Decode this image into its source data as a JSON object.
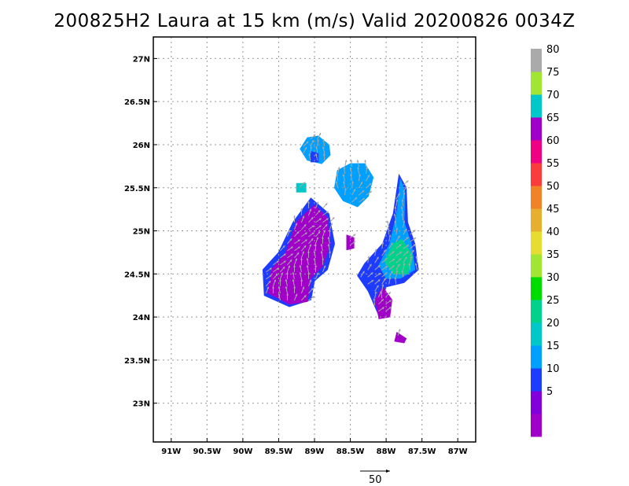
{
  "title": "200825H2 Laura at 15 km (m/s) Valid 20200826 0034Z",
  "map": {
    "lon_range": [
      -91.25,
      -86.75
    ],
    "lat_range": [
      22.55,
      27.25
    ],
    "x_ticks": [
      {
        "lon": -91.0,
        "label": "91W"
      },
      {
        "lon": -90.5,
        "label": "90.5W"
      },
      {
        "lon": -90.0,
        "label": "90W"
      },
      {
        "lon": -89.5,
        "label": "89.5W"
      },
      {
        "lon": -89.0,
        "label": "89W"
      },
      {
        "lon": -88.5,
        "label": "88.5W"
      },
      {
        "lon": -88.0,
        "label": "88W"
      },
      {
        "lon": -87.5,
        "label": "87.5W"
      },
      {
        "lon": -87.0,
        "label": "87W"
      }
    ],
    "y_ticks": [
      {
        "lat": 27.0,
        "label": "27N"
      },
      {
        "lat": 26.5,
        "label": "26.5N"
      },
      {
        "lat": 26.0,
        "label": "26N"
      },
      {
        "lat": 25.5,
        "label": "25.5N"
      },
      {
        "lat": 25.0,
        "label": "25N"
      },
      {
        "lat": 24.5,
        "label": "24.5N"
      },
      {
        "lat": 24.0,
        "label": "24N"
      },
      {
        "lat": 23.5,
        "label": "23.5N"
      },
      {
        "lat": 23.0,
        "label": "23N"
      }
    ],
    "grid": "dotted"
  },
  "colorbar": {
    "levels": [
      {
        "label": "",
        "color": "#a000c8"
      },
      {
        "label": "5",
        "color": "#8200dc"
      },
      {
        "label": "10",
        "color": "#1e3cff"
      },
      {
        "label": "15",
        "color": "#00a0ff"
      },
      {
        "label": "20",
        "color": "#00c8c8"
      },
      {
        "label": "25",
        "color": "#00d28c"
      },
      {
        "label": "30",
        "color": "#00dc00"
      },
      {
        "label": "35",
        "color": "#a0e632"
      },
      {
        "label": "40",
        "color": "#e6dc32"
      },
      {
        "label": "45",
        "color": "#e6af2d"
      },
      {
        "label": "50",
        "color": "#f08228"
      },
      {
        "label": "55",
        "color": "#fa3c3c"
      },
      {
        "label": "60",
        "color": "#f00082"
      },
      {
        "label": "65",
        "color": "#a000c8"
      },
      {
        "label": "70",
        "color": "#00c8c8"
      },
      {
        "label": "75",
        "color": "#a0e632"
      },
      {
        "label": "80",
        "color": "#aaaaaa"
      }
    ]
  },
  "wind_regions": [
    {
      "name": "north-feature",
      "color": "#00a0ff",
      "vertices": [
        [
          -88.95,
          26.1
        ],
        [
          -88.8,
          26.0
        ],
        [
          -88.78,
          25.88
        ],
        [
          -88.9,
          25.78
        ],
        [
          -89.1,
          25.82
        ],
        [
          -89.2,
          25.95
        ],
        [
          -89.1,
          26.08
        ]
      ]
    },
    {
      "name": "north-feature-core",
      "color": "#1e3cff",
      "vertices": [
        [
          -89.05,
          25.92
        ],
        [
          -88.95,
          25.9
        ],
        [
          -88.95,
          25.8
        ],
        [
          -89.05,
          25.8
        ]
      ]
    },
    {
      "name": "north-central-feature",
      "color": "#00a0ff",
      "vertices": [
        [
          -88.5,
          25.78
        ],
        [
          -88.3,
          25.78
        ],
        [
          -88.18,
          25.62
        ],
        [
          -88.25,
          25.4
        ],
        [
          -88.4,
          25.28
        ],
        [
          -88.6,
          25.35
        ],
        [
          -88.72,
          25.5
        ],
        [
          -88.68,
          25.7
        ]
      ]
    },
    {
      "name": "small-west-feature",
      "color": "#00c8c8",
      "vertices": [
        [
          -89.25,
          25.55
        ],
        [
          -89.12,
          25.55
        ],
        [
          -89.12,
          25.45
        ],
        [
          -89.25,
          25.45
        ]
      ]
    },
    {
      "name": "west-band-outer",
      "color": "#1e3cff",
      "vertices": [
        [
          -89.05,
          25.38
        ],
        [
          -88.8,
          25.2
        ],
        [
          -88.72,
          24.85
        ],
        [
          -88.82,
          24.55
        ],
        [
          -89.0,
          24.42
        ],
        [
          -89.05,
          24.2
        ],
        [
          -89.35,
          24.12
        ],
        [
          -89.7,
          24.25
        ],
        [
          -89.72,
          24.55
        ],
        [
          -89.5,
          24.75
        ],
        [
          -89.3,
          25.1
        ]
      ]
    },
    {
      "name": "west-band-core",
      "color": "#a000c8",
      "vertices": [
        [
          -89.0,
          25.3
        ],
        [
          -88.82,
          25.15
        ],
        [
          -88.78,
          24.85
        ],
        [
          -88.88,
          24.6
        ],
        [
          -89.05,
          24.45
        ],
        [
          -89.1,
          24.18
        ],
        [
          -89.35,
          24.15
        ],
        [
          -89.65,
          24.28
        ],
        [
          -89.6,
          24.55
        ],
        [
          -89.4,
          24.75
        ],
        [
          -89.25,
          25.1
        ]
      ]
    },
    {
      "name": "mid-small-feature",
      "color": "#a000c8",
      "vertices": [
        [
          -88.55,
          24.95
        ],
        [
          -88.45,
          24.92
        ],
        [
          -88.45,
          24.8
        ],
        [
          -88.55,
          24.78
        ]
      ]
    },
    {
      "name": "east-band-outer",
      "color": "#1e3cff",
      "vertices": [
        [
          -87.82,
          25.65
        ],
        [
          -87.72,
          25.5
        ],
        [
          -87.7,
          25.1
        ],
        [
          -87.6,
          24.85
        ],
        [
          -87.55,
          24.55
        ],
        [
          -87.75,
          24.4
        ],
        [
          -88.0,
          24.35
        ],
        [
          -88.12,
          24.05
        ],
        [
          -88.25,
          24.3
        ],
        [
          -88.4,
          24.48
        ],
        [
          -88.3,
          24.62
        ],
        [
          -88.05,
          24.85
        ],
        [
          -87.9,
          25.2
        ]
      ]
    },
    {
      "name": "east-band-core",
      "color": "#00a0ff",
      "vertices": [
        [
          -87.8,
          25.6
        ],
        [
          -87.74,
          25.45
        ],
        [
          -87.75,
          25.1
        ],
        [
          -87.65,
          24.85
        ],
        [
          -87.6,
          24.55
        ],
        [
          -87.8,
          24.45
        ],
        [
          -88.0,
          24.45
        ],
        [
          -88.1,
          24.6
        ],
        [
          -87.95,
          24.85
        ],
        [
          -87.85,
          25.2
        ]
      ]
    },
    {
      "name": "east-band-max",
      "color": "#00d28c",
      "vertices": [
        [
          -87.78,
          24.9
        ],
        [
          -87.62,
          24.7
        ],
        [
          -87.7,
          24.5
        ],
        [
          -87.9,
          24.5
        ],
        [
          -88.02,
          24.65
        ],
        [
          -87.9,
          24.85
        ]
      ]
    },
    {
      "name": "south-feature",
      "color": "#a000c8",
      "vertices": [
        [
          -88.05,
          24.35
        ],
        [
          -87.92,
          24.2
        ],
        [
          -87.95,
          24.0
        ],
        [
          -88.1,
          23.98
        ],
        [
          -88.15,
          24.2
        ]
      ]
    },
    {
      "name": "far-south-feature",
      "color": "#a000c8",
      "vertices": [
        [
          -87.85,
          23.82
        ],
        [
          -87.72,
          23.75
        ],
        [
          -87.75,
          23.7
        ],
        [
          -87.88,
          23.72
        ]
      ]
    }
  ],
  "vector_reference": {
    "label": "50"
  }
}
